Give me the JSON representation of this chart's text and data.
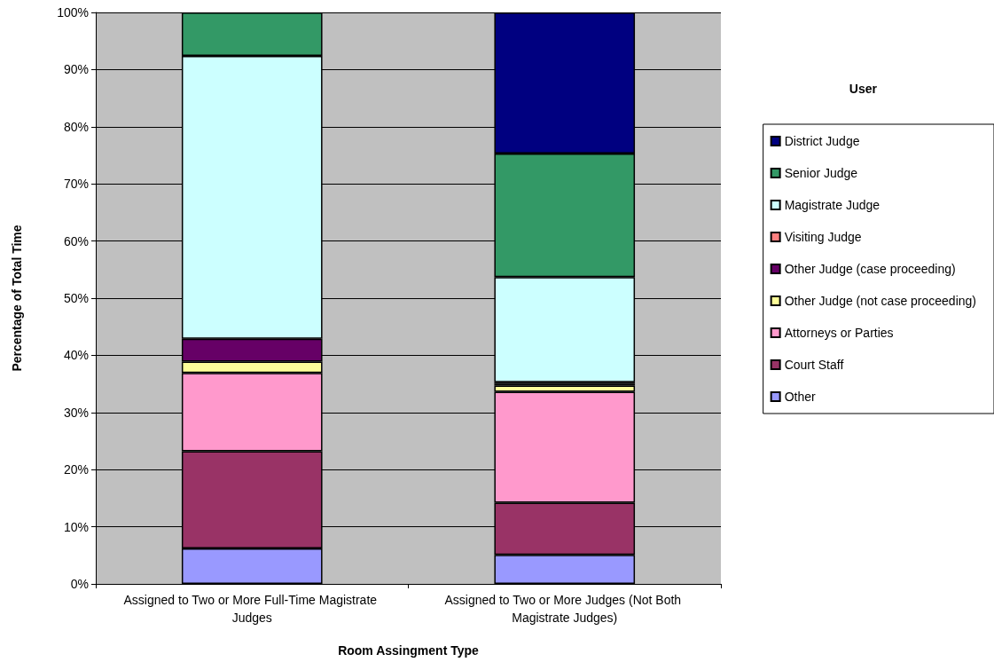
{
  "chart_data": {
    "type": "bar",
    "stacked": true,
    "xlabel": "Room Assingment Type",
    "ylabel": "Percentage of Total Time",
    "legend_title": "User",
    "legend": "right",
    "categories": [
      "Assigned to Two or More Full-Time Magistrate Judges",
      "Assigned to Two or More Judges (Not Both Magistrate Judges)"
    ],
    "ylim": [
      0,
      100
    ],
    "yticks": [
      {
        "value": 0,
        "label": "0%"
      },
      {
        "value": 10,
        "label": "10%"
      },
      {
        "value": 20,
        "label": "20%"
      },
      {
        "value": 30,
        "label": "30%"
      },
      {
        "value": 40,
        "label": "40%"
      },
      {
        "value": 50,
        "label": "50%"
      },
      {
        "value": 60,
        "label": "60%"
      },
      {
        "value": 70,
        "label": "70%"
      },
      {
        "value": 80,
        "label": "80%"
      },
      {
        "value": 90,
        "label": "90%"
      },
      {
        "value": 100,
        "label": "100%"
      }
    ],
    "grid": "y",
    "series": [
      {
        "name": "Other",
        "color": "#9999ff",
        "values": [
          6.2,
          5.1
        ]
      },
      {
        "name": "Court Staff",
        "color": "#993366",
        "values": [
          17.0,
          9.1
        ]
      },
      {
        "name": "Attorneys or Parties",
        "color": "#ff99cc",
        "values": [
          13.7,
          19.4
        ]
      },
      {
        "name": "Other Judge (not case proceeding)",
        "color": "#ffff99",
        "values": [
          2.0,
          1.1
        ]
      },
      {
        "name": "Other Judge (case proceeding)",
        "color": "#660066",
        "values": [
          4.0,
          0.3
        ]
      },
      {
        "name": "Visiting Judge",
        "color": "#ff8080",
        "values": [
          0,
          0.3
        ]
      },
      {
        "name": "Magistrate Judge",
        "color": "#ccffff",
        "values": [
          49.5,
          18.4
        ]
      },
      {
        "name": "Senior Judge",
        "color": "#339966",
        "values": [
          7.6,
          21.6
        ]
      },
      {
        "name": "District Judge",
        "color": "#000080",
        "values": [
          0,
          24.7
        ]
      }
    ]
  }
}
